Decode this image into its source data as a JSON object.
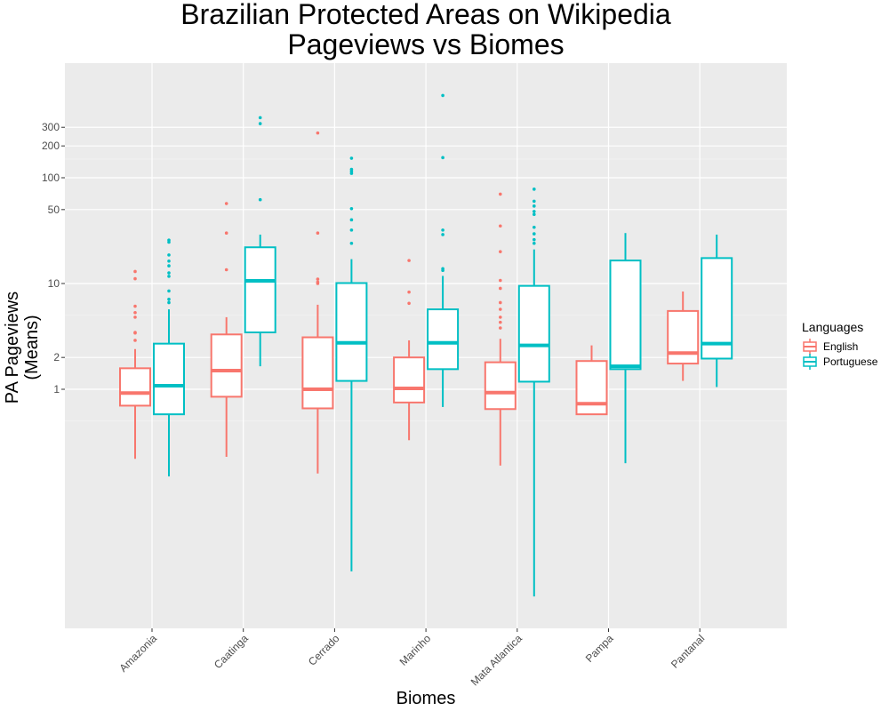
{
  "chart_data": {
    "type": "boxplot",
    "title": "Brazilian Protected Areas on Wikipedia",
    "subtitle": "Pageviews vs Biomes",
    "xlabel": "Biomes",
    "ylabel_line1": "PA Pageviews",
    "ylabel_line2": "(Means)",
    "y_scale": "log",
    "y_ticks": [
      {
        "value": 1,
        "label": "1"
      },
      {
        "value": 2,
        "label": "2"
      },
      {
        "value": 10,
        "label": "10"
      },
      {
        "value": 50,
        "label": "50"
      },
      {
        "value": 100,
        "label": "100"
      },
      {
        "value": 200,
        "label": "200"
      },
      {
        "value": 300,
        "label": "300"
      }
    ],
    "categories": [
      "Amazonia",
      "Caatinga",
      "Cerrado",
      "Marinho",
      "Mata Atlantica",
      "Pampa",
      "Pantanal"
    ],
    "legend": {
      "title": "Languages",
      "position": "right"
    },
    "grid": true,
    "series": [
      {
        "name": "English",
        "color": "#F8766D",
        "boxes": [
          {
            "lower": 0.22,
            "q1": 0.7,
            "median": 0.92,
            "q3": 1.58,
            "upper": 2.4,
            "outliers": [
              2.9,
              3.4,
              3.45,
              4.8,
              5.3,
              6.1,
              11.1,
              13
            ]
          },
          {
            "lower": 0.23,
            "q1": 0.85,
            "median": 1.5,
            "q3": 3.3,
            "upper": 4.8,
            "outliers": [
              13.5,
              30,
              57
            ]
          },
          {
            "lower": 0.16,
            "q1": 0.66,
            "median": 1,
            "q3": 3.1,
            "upper": 6.3,
            "outliers": [
              10,
              10.3,
              11,
              30,
              265
            ]
          },
          {
            "lower": 0.33,
            "q1": 0.75,
            "median": 1.02,
            "q3": 2,
            "upper": 2.9,
            "outliers": [
              6.5,
              8.3,
              16.5
            ]
          },
          {
            "lower": 0.19,
            "q1": 0.65,
            "median": 0.93,
            "q3": 1.8,
            "upper": 3,
            "outliers": [
              3.8,
              4.3,
              4.8,
              5.7,
              6.6,
              9,
              10.7,
              20,
              35,
              70
            ]
          },
          {
            "lower": 0,
            "q1": 0.58,
            "median": 0.73,
            "q3": 1.85,
            "upper": 2.6,
            "outliers": []
          },
          {
            "lower": 1.2,
            "q1": 1.75,
            "median": 2.2,
            "q3": 5.5,
            "upper": 8.4,
            "outliers": []
          }
        ]
      },
      {
        "name": "Portuguese",
        "color": "#00BFC4",
        "boxes": [
          {
            "lower": 0.15,
            "q1": 0.58,
            "median": 1.08,
            "q3": 2.7,
            "upper": 5.7,
            "outliers": [
              6.6,
              7.1,
              8.5,
              11.7,
              12.6,
              14.7,
              16.3,
              18.6,
              24.6,
              25.7
            ]
          },
          {
            "lower": 1.65,
            "q1": 3.45,
            "median": 10.6,
            "q3": 22,
            "upper": 29,
            "outliers": [
              62,
              325,
              370
            ]
          },
          {
            "lower": 0.019,
            "q1": 1.2,
            "median": 2.75,
            "q3": 10.1,
            "upper": 17,
            "outliers": [
              24,
              32,
              40,
              51,
              110,
              115,
              120,
              153
            ]
          },
          {
            "lower": 0.68,
            "q1": 1.55,
            "median": 2.75,
            "q3": 5.7,
            "upper": 11.8,
            "outliers": [
              13.3,
              13.8,
              29,
              32,
              155,
              600
            ]
          },
          {
            "lower": 0.011,
            "q1": 1.18,
            "median": 2.6,
            "q3": 9.5,
            "upper": 21,
            "outliers": [
              24,
              26,
              29.5,
              34,
              45,
              48,
              54,
              60,
              78
            ]
          },
          {
            "lower": 0.2,
            "q1": 1.55,
            "median": 1.65,
            "q3": 16.5,
            "upper": 30,
            "outliers": []
          },
          {
            "lower": 1.05,
            "q1": 1.95,
            "median": 2.7,
            "q3": 17.4,
            "upper": 29,
            "outliers": []
          }
        ]
      }
    ]
  }
}
